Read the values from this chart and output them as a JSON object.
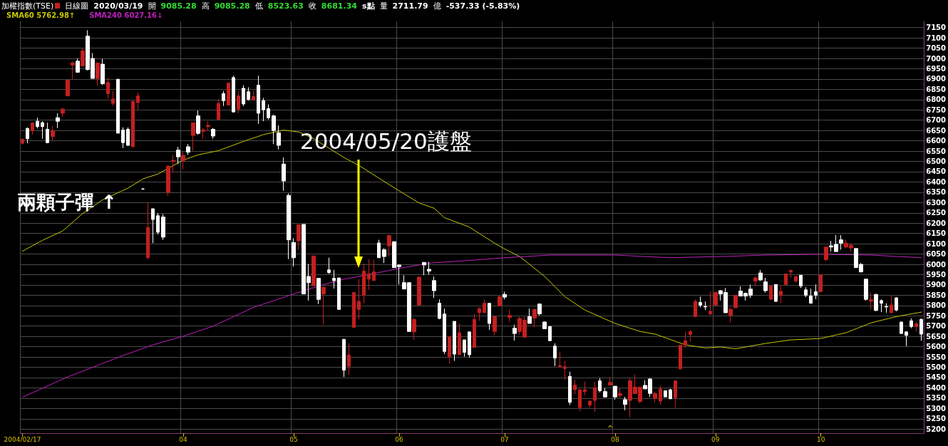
{
  "chart_data": {
    "type": "candlestick",
    "title": "加權指數(TSE)",
    "subtitle": "日線圖",
    "annotations": [
      "兩顆子彈 ↑",
      "2004/05/20護盤",
      "^",
      "2020/03/19",
      "開",
      "9085.28",
      "高",
      "9085.28",
      "低",
      "8523.63",
      "收",
      "8681.34",
      "s點",
      "量",
      "2711.79",
      "億",
      "-537.33 (-5.83%)"
    ],
    "categories": [
      "2004/02/17",
      null,
      null,
      null,
      null,
      null,
      null,
      null,
      null,
      null,
      null,
      null,
      null,
      null,
      null,
      null,
      null,
      null,
      null,
      null,
      null,
      null,
      null,
      null,
      null,
      null,
      null,
      null,
      null,
      null,
      null,
      null,
      "04",
      null,
      null,
      null,
      null,
      null,
      null,
      null,
      null,
      null,
      null,
      null,
      null,
      null,
      null,
      null,
      null,
      null,
      null,
      null,
      null,
      null,
      "05",
      null,
      null,
      null,
      null,
      null,
      null,
      null,
      null,
      null,
      null,
      null,
      null,
      null,
      null,
      null,
      null,
      null,
      null,
      null,
      null,
      "06",
      null,
      null,
      null,
      null,
      null,
      null,
      null,
      null,
      null,
      null,
      null,
      null,
      null,
      null,
      null,
      null,
      null,
      null,
      null,
      null,
      "07",
      null,
      null,
      null,
      null,
      null,
      null,
      null,
      null,
      null,
      null,
      null,
      null,
      null,
      null,
      null,
      null,
      null,
      null,
      null,
      null,
      null,
      "08",
      null,
      null,
      null,
      null,
      null,
      null,
      null,
      null,
      null,
      null,
      null,
      null,
      null,
      null,
      null,
      null,
      null,
      null,
      null,
      "09",
      null,
      null,
      null,
      null,
      null,
      null,
      null,
      null,
      null,
      null,
      null,
      null,
      null,
      null,
      null,
      null,
      null,
      null,
      null,
      null,
      "10",
      null,
      null,
      null,
      null,
      null,
      null,
      null,
      null,
      null,
      null,
      null,
      null,
      null,
      null,
      null,
      null,
      null,
      null,
      null,
      null
    ],
    "ohlc": [
      [
        6588,
        6613,
        6582,
        6607
      ],
      [
        6660,
        6665,
        6588,
        6610
      ],
      [
        6649,
        6691,
        6630,
        6686
      ],
      [
        6695,
        6712,
        6660,
        6669
      ],
      [
        6688,
        6695,
        6610,
        6669
      ],
      [
        6656,
        6688,
        6588,
        6591
      ],
      [
        6621,
        6673,
        6597,
        6650
      ],
      [
        6712,
        6734,
        6662,
        6695
      ],
      [
        6734,
        6760,
        6714,
        6754
      ],
      [
        6818,
        6897,
        6816,
        6894
      ],
      [
        6968,
        6985,
        6899,
        6978
      ],
      [
        6987,
        7000,
        6933,
        6933
      ],
      [
        6964,
        7052,
        6961,
        7037
      ],
      [
        7108,
        7137,
        6942,
        6946
      ],
      [
        7000,
        7026,
        6903,
        6903
      ],
      [
        6903,
        6981,
        6868,
        6978
      ],
      [
        6972,
        6998,
        6871,
        6877
      ],
      [
        6829,
        6907,
        6806,
        6883
      ],
      [
        6782,
        6842,
        6769,
        6803
      ],
      [
        6899,
        6899,
        6637,
        6637
      ],
      [
        6652,
        6665,
        6565,
        6591
      ],
      [
        6656,
        6665,
        6575,
        6578
      ],
      [
        6571,
        6792,
        6571,
        6792
      ],
      [
        6786,
        6834,
        6753,
        6818
      ],
      [
        6366,
        6370,
        6362,
        6366
      ],
      [
        6032,
        6298,
        6025,
        6179
      ],
      [
        6270,
        6270,
        6103,
        6218
      ],
      [
        6236,
        6249,
        6145,
        6156
      ],
      [
        6230,
        6244,
        6119,
        6132
      ],
      [
        6350,
        6481,
        6331,
        6477
      ],
      [
        6500,
        6532,
        6448,
        6505
      ],
      [
        6555,
        6571,
        6487,
        6522
      ],
      [
        6504,
        6545,
        6461,
        6529
      ],
      [
        6571,
        6584,
        6532,
        6545
      ],
      [
        6626,
        6688,
        6552,
        6688
      ],
      [
        6721,
        6747,
        6630,
        6636
      ],
      [
        6646,
        6662,
        6610,
        6653
      ],
      [
        6669,
        6695,
        6649,
        6675
      ],
      [
        6656,
        6662,
        6610,
        6623
      ],
      [
        6704,
        6803,
        6704,
        6782
      ],
      [
        6829,
        6842,
        6769,
        6795
      ],
      [
        6773,
        6881,
        6773,
        6881
      ],
      [
        6907,
        6916,
        6740,
        6740
      ],
      [
        6754,
        6842,
        6734,
        6818
      ],
      [
        6855,
        6870,
        6769,
        6779
      ],
      [
        6838,
        6860,
        6795,
        6801
      ],
      [
        6799,
        6842,
        6795,
        6815
      ],
      [
        6870,
        6916,
        6682,
        6734
      ],
      [
        6795,
        6808,
        6695,
        6751
      ],
      [
        6756,
        6777,
        6704,
        6712
      ],
      [
        6721,
        6727,
        6584,
        6650
      ],
      [
        6639,
        6675,
        6558,
        6578
      ],
      [
        6487,
        6519,
        6357,
        6405
      ],
      [
        6335,
        6344,
        6025,
        6119
      ],
      [
        6106,
        6127,
        5989,
        6032
      ],
      [
        6114,
        6194,
        6071,
        6192
      ],
      [
        6194,
        6194,
        5856,
        5856
      ],
      [
        5941,
        6002,
        5824,
        5911
      ],
      [
        5896,
        6041,
        5896,
        6041
      ],
      [
        5932,
        5932,
        5807,
        5830
      ],
      [
        5856,
        5889,
        5707,
        5889
      ],
      [
        5973,
        6032,
        5954,
        5960
      ],
      [
        5932,
        5973,
        5882,
        5921
      ],
      [
        5934,
        5934,
        5781,
        5781
      ],
      [
        5636,
        5636,
        5453,
        5486
      ],
      [
        5505,
        5616,
        5463,
        5560
      ],
      [
        5694,
        5863,
        5694,
        5863
      ],
      [
        5781,
        5928,
        5733,
        5820
      ],
      [
        5850,
        6003,
        5811,
        5967
      ],
      [
        5928,
        6025,
        5876,
        5954
      ],
      [
        5921,
        6023,
        5921,
        5963
      ],
      [
        6104,
        6119,
        6032,
        6032
      ],
      [
        6071,
        6078,
        6006,
        6038
      ],
      [
        6090,
        6142,
        6038,
        6140
      ],
      [
        6110,
        6110,
        5984,
        5984
      ],
      [
        5997,
        5999,
        5902,
        5989
      ],
      [
        5911,
        5947,
        5880,
        5880
      ],
      [
        5911,
        5911,
        5674,
        5674
      ],
      [
        5672,
        5739,
        5633,
        5733
      ],
      [
        5802,
        5941,
        5802,
        5938
      ],
      [
        6009,
        6012,
        5947,
        5997
      ],
      [
        5976,
        6012,
        5950,
        5967
      ],
      [
        5921,
        5941,
        5837,
        5872
      ],
      [
        5811,
        5830,
        5733,
        5737
      ],
      [
        5759,
        5785,
        5564,
        5577
      ],
      [
        5551,
        5648,
        5518,
        5648
      ],
      [
        5723,
        5723,
        5531,
        5564
      ],
      [
        5561,
        5713,
        5561,
        5668
      ],
      [
        5633,
        5633,
        5551,
        5573
      ],
      [
        5672,
        5672,
        5547,
        5561
      ],
      [
        5596,
        5759,
        5596,
        5733
      ],
      [
        5765,
        5791,
        5726,
        5785
      ],
      [
        5765,
        5830,
        5765,
        5811
      ],
      [
        5811,
        5811,
        5681,
        5713
      ],
      [
        5674,
        5746,
        5655,
        5746
      ],
      [
        5798,
        5850,
        5798,
        5843
      ],
      [
        5854,
        5867,
        5830,
        5841
      ],
      [
        5742,
        5781,
        5720,
        5752
      ],
      [
        5690,
        5707,
        5629,
        5664
      ],
      [
        5674,
        5746,
        5659,
        5737
      ],
      [
        5646,
        5746,
        5646,
        5729
      ],
      [
        5746,
        5785,
        5713,
        5713
      ],
      [
        5739,
        5785,
        5694,
        5781
      ],
      [
        5807,
        5811,
        5752,
        5759
      ],
      [
        5720,
        5723,
        5687,
        5687
      ],
      [
        5698,
        5700,
        5629,
        5629
      ],
      [
        5603,
        5616,
        5505,
        5545
      ],
      [
        5503,
        5577,
        5503,
        5508
      ],
      [
        5494,
        5532,
        5440,
        5503
      ],
      [
        5456,
        5479,
        5317,
        5330
      ],
      [
        5391,
        5440,
        5369,
        5414
      ],
      [
        5304,
        5391,
        5287,
        5391
      ],
      [
        5382,
        5430,
        5365,
        5391
      ],
      [
        5317,
        5336,
        5304,
        5336
      ],
      [
        5339,
        5430,
        5284,
        5401
      ],
      [
        5434,
        5447,
        5378,
        5386
      ],
      [
        5382,
        5399,
        5352,
        5356
      ],
      [
        5414,
        5453,
        5411,
        5427
      ],
      [
        5408,
        5408,
        5343,
        5356
      ],
      [
        5363,
        5399,
        5352,
        5373
      ],
      [
        5343,
        5356,
        5291,
        5320
      ],
      [
        5339,
        5447,
        5258,
        5434
      ],
      [
        5372,
        5466,
        5372,
        5404
      ],
      [
        5333,
        5404,
        5326,
        5404
      ],
      [
        5412,
        5437,
        5395,
        5395
      ],
      [
        5443,
        5447,
        5356,
        5373
      ],
      [
        5350,
        5382,
        5330,
        5373
      ],
      [
        5336,
        5412,
        5317,
        5395
      ],
      [
        5386,
        5386,
        5356,
        5356
      ],
      [
        5391,
        5395,
        5347,
        5347
      ],
      [
        5352,
        5434,
        5304,
        5434
      ],
      [
        5492,
        5607,
        5492,
        5607
      ],
      [
        5607,
        5674,
        5594,
        5629
      ],
      [
        5659,
        5681,
        5625,
        5674
      ],
      [
        5746,
        5830,
        5746,
        5820
      ],
      [
        5815,
        5843,
        5791,
        5802
      ],
      [
        5796,
        5820,
        5778,
        5793
      ],
      [
        5759,
        5869,
        5752,
        5772
      ],
      [
        5802,
        5863,
        5802,
        5863
      ],
      [
        5872,
        5876,
        5824,
        5856
      ],
      [
        5863,
        5885,
        5765,
        5765
      ],
      [
        5752,
        5789,
        5716,
        5781
      ],
      [
        5789,
        5850,
        5789,
        5850
      ],
      [
        5870,
        5893,
        5845,
        5846
      ],
      [
        5859,
        5863,
        5824,
        5846
      ],
      [
        5880,
        5902,
        5837,
        5850
      ],
      [
        5919,
        5941,
        5895,
        5934
      ],
      [
        5958,
        5973,
        5919,
        5924
      ],
      [
        5915,
        5934,
        5863,
        5872
      ],
      [
        5830,
        5895,
        5830,
        5895
      ],
      [
        5902,
        5902,
        5817,
        5820
      ],
      [
        5850,
        5895,
        5811,
        5869
      ],
      [
        5902,
        5954,
        5902,
        5954
      ],
      [
        5963,
        5973,
        5934,
        5971
      ],
      [
        5919,
        5941,
        5911,
        5941
      ],
      [
        5947,
        5947,
        5885,
        5895
      ],
      [
        5876,
        5889,
        5841,
        5850
      ],
      [
        5846,
        5882,
        5811,
        5811
      ],
      [
        5867,
        5902,
        5830,
        5850
      ],
      [
        5867,
        5950,
        5867,
        5950
      ],
      [
        6023,
        6084,
        6015,
        6084
      ],
      [
        6090,
        6114,
        6062,
        6084
      ],
      [
        6097,
        6142,
        6062,
        6062
      ],
      [
        6119,
        6142,
        6071,
        6103
      ],
      [
        6084,
        6119,
        6077,
        6103
      ],
      [
        6080,
        6103,
        6062,
        6093
      ],
      [
        6077,
        6077,
        5984,
        5984
      ],
      [
        6000,
        6006,
        5963,
        5963
      ],
      [
        5928,
        5928,
        5824,
        5830
      ],
      [
        5821,
        5863,
        5781,
        5828
      ],
      [
        5854,
        5856,
        5772,
        5776
      ],
      [
        5824,
        5830,
        5768,
        5811
      ],
      [
        5796,
        5811,
        5765,
        5793
      ],
      [
        5765,
        5850,
        5763,
        5802
      ],
      [
        5837,
        5841,
        5772,
        5778
      ],
      [
        5720,
        5720,
        5664,
        5664
      ],
      [
        5672,
        5674,
        5603,
        5655
      ],
      [
        5726,
        5737,
        5690,
        5698
      ],
      [
        5698,
        5720,
        5674,
        5711
      ],
      [
        5733,
        5737,
        5629,
        5661
      ]
    ],
    "colors": [
      "#c41f1f",
      "#ffffff",
      "#c41f1f",
      "#ffffff",
      "#ffffff",
      "#ffffff",
      "#c41f1f",
      "#ffffff",
      "#c41f1f",
      "#c41f1f",
      "#c41f1f",
      "#ffffff",
      "#c41f1f",
      "#ffffff",
      "#ffffff",
      "#c41f1f",
      "#ffffff",
      "#c41f1f",
      "#c41f1f",
      "#ffffff",
      "#ffffff",
      "#ffffff",
      "#c41f1f",
      "#c41f1f",
      "#ffffff",
      "#c41f1f",
      "#ffffff",
      "#ffffff",
      "#ffffff",
      "#c41f1f",
      "#c41f1f",
      "#ffffff",
      "#c41f1f",
      "#ffffff",
      "#c41f1f",
      "#ffffff",
      "#c41f1f",
      "#c41f1f",
      "#ffffff",
      "#c41f1f",
      "#ffffff",
      "#c41f1f",
      "#ffffff",
      "#c41f1f",
      "#ffffff",
      "#ffffff",
      "#c41f1f",
      "#ffffff",
      "#ffffff",
      "#ffffff",
      "#ffffff",
      "#ffffff",
      "#ffffff",
      "#ffffff",
      "#ffffff",
      "#c41f1f",
      "#ffffff",
      "#ffffff",
      "#c41f1f",
      "#ffffff",
      "#c41f1f",
      "#ffffff",
      "#ffffff",
      "#ffffff",
      "#ffffff",
      "#c41f1f",
      "#c41f1f",
      "#c41f1f",
      "#c41f1f",
      "#c41f1f",
      "#c41f1f",
      "#ffffff",
      "#ffffff",
      "#c41f1f",
      "#ffffff",
      "#ffffff",
      "#ffffff",
      "#ffffff",
      "#c41f1f",
      "#c41f1f",
      "#ffffff",
      "#ffffff",
      "#ffffff",
      "#ffffff",
      "#ffffff",
      "#c41f1f",
      "#ffffff",
      "#c41f1f",
      "#ffffff",
      "#ffffff",
      "#c41f1f",
      "#c41f1f",
      "#c41f1f",
      "#ffffff",
      "#c41f1f",
      "#c41f1f",
      "#ffffff",
      "#c41f1f",
      "#ffffff",
      "#c41f1f",
      "#c41f1f",
      "#ffffff",
      "#c41f1f",
      "#ffffff",
      "#ffffff",
      "#ffffff",
      "#ffffff",
      "#c41f1f",
      "#c41f1f",
      "#ffffff",
      "#c41f1f",
      "#c41f1f",
      "#c41f1f",
      "#c41f1f",
      "#c41f1f",
      "#ffffff",
      "#ffffff",
      "#c41f1f",
      "#ffffff",
      "#c41f1f",
      "#ffffff",
      "#c41f1f",
      "#c41f1f",
      "#c41f1f",
      "#ffffff",
      "#ffffff",
      "#c41f1f",
      "#c41f1f",
      "#ffffff",
      "#ffffff",
      "#c41f1f",
      "#c41f1f",
      "#c41f1f",
      "#c41f1f",
      "#c41f1f",
      "#ffffff",
      "#ffffff",
      "#c41f1f",
      "#c41f1f",
      "#ffffff",
      "#ffffff",
      "#c41f1f",
      "#c41f1f",
      "#ffffff",
      "#ffffff",
      "#ffffff",
      "#c41f1f",
      "#ffffff",
      "#ffffff",
      "#c41f1f",
      "#ffffff",
      "#c41f1f",
      "#c41f1f",
      "#c41f1f",
      "#c41f1f",
      "#ffffff",
      "#ffffff",
      "#ffffff",
      "#ffffff",
      "#c41f1f",
      "#c41f1f",
      "#ffffff",
      "#ffffff",
      "#ffffff",
      "#c41f1f",
      "#c41f1f",
      "#ffffff",
      "#ffffff",
      "#ffffff",
      "#c41f1f",
      "#ffffff",
      "#ffffff",
      "#ffffff",
      "#c41f1f",
      "#ffffff",
      "#ffffff",
      "#ffffff",
      "#ffffff",
      "#c41f1f",
      "#ffffff"
    ],
    "series": [
      {
        "type": "line",
        "name": "SMA60 5762.98↑",
        "color": "#c8c800",
        "values": [
          6064,
          null,
          null,
          null,
          6117,
          null,
          null,
          null,
          6162,
          null,
          null,
          null,
          6247,
          null,
          null,
          null,
          6314,
          null,
          null,
          null,
          null,
          6370,
          null,
          null,
          6415,
          null,
          null,
          6439,
          null,
          null,
          null,
          null,
          6506,
          null,
          null,
          6532,
          null,
          null,
          null,
          6552,
          null,
          null,
          null,
          null,
          6597,
          null,
          null,
          null,
          6630,
          null,
          null,
          null,
          6652,
          null,
          null,
          6643,
          null,
          null,
          6610,
          null,
          null,
          null,
          null,
          null,
          6519,
          null,
          null,
          6480,
          null,
          null,
          null,
          null,
          null,
          null,
          null,
          6357,
          null,
          null,
          null,
          6298,
          null,
          null,
          6272,
          null,
          6227,
          null,
          null,
          null,
          null,
          6181,
          null,
          null,
          null,
          null,
          6103,
          null,
          6075,
          null,
          null,
          6038,
          null,
          null,
          null,
          null,
          5941,
          null,
          null,
          null,
          5843,
          null,
          null,
          null,
          5778,
          null,
          null,
          null,
          null,
          null,
          5713,
          null,
          null,
          null,
          null,
          5674,
          null,
          null,
          5661,
          null,
          null,
          null,
          null,
          null,
          5609,
          null,
          null,
          null,
          5594,
          null,
          null,
          5599,
          null,
          null,
          5590,
          null,
          null,
          null,
          null,
          null,
          5616,
          null,
          null,
          null,
          null,
          5633,
          null,
          null,
          null,
          null,
          null,
          5640,
          null,
          null,
          null,
          null,
          5668,
          null,
          null,
          null,
          null,
          5716,
          null,
          null,
          null,
          null,
          5746,
          null,
          null,
          null,
          null,
          5768
        ]
      },
      {
        "type": "line",
        "name": "SMA240 6027.16↓",
        "color": "#c020c0",
        "values": [
          5355,
          null,
          null,
          null,
          null,
          null,
          null,
          null,
          null,
          5453,
          null,
          null,
          null,
          null,
          null,
          null,
          null,
          null,
          null,
          null,
          5557,
          null,
          null,
          null,
          null,
          null,
          5609,
          null,
          null,
          null,
          null,
          null,
          5651,
          null,
          null,
          null,
          null,
          null,
          5700,
          null,
          null,
          null,
          null,
          null,
          null,
          null,
          5791,
          null,
          null,
          null,
          null,
          null,
          null,
          null,
          5856,
          null,
          null,
          null,
          null,
          null,
          5902,
          null,
          null,
          null,
          5928,
          null,
          null,
          5941,
          null,
          null,
          null,
          null,
          null,
          null,
          null,
          5980,
          null,
          null,
          null,
          null,
          null,
          6006,
          null,
          null,
          null,
          null,
          null,
          null,
          null,
          6019,
          null,
          null,
          null,
          null,
          null,
          null,
          6032,
          null,
          null,
          null,
          null,
          null,
          null,
          null,
          null,
          6045,
          null,
          null,
          null,
          null,
          null,
          null,
          null,
          null,
          null,
          null,
          null,
          null,
          6045,
          null,
          null,
          null,
          null,
          null,
          null,
          null,
          null,
          null,
          null,
          6032,
          null,
          null,
          null,
          null,
          null,
          null,
          null,
          null,
          null,
          6038,
          null,
          null,
          null,
          null,
          null,
          null,
          null,
          null,
          6045,
          null,
          null,
          null,
          null,
          null,
          null,
          null,
          null,
          null,
          null,
          6049,
          null,
          null,
          null,
          null,
          null,
          null,
          null,
          null,
          null,
          6045,
          null,
          null,
          null,
          null,
          null,
          null,
          null,
          null,
          null,
          6032
        ]
      }
    ],
    "ylim": [
      5180,
      7180
    ],
    "yticks": [
      5200,
      5250,
      5300,
      5350,
      5400,
      5450,
      5500,
      5550,
      5600,
      5650,
      5700,
      5750,
      5800,
      5850,
      5900,
      5950,
      6000,
      6050,
      6100,
      6150,
      6200,
      6250,
      6300,
      6350,
      6400,
      6450,
      6500,
      6550,
      6600,
      6650,
      6700,
      6750,
      6800,
      6850,
      6900,
      6950,
      7000,
      7050,
      7100,
      7150
    ],
    "grid": true,
    "legend": "top left",
    "marker": "none"
  }
}
